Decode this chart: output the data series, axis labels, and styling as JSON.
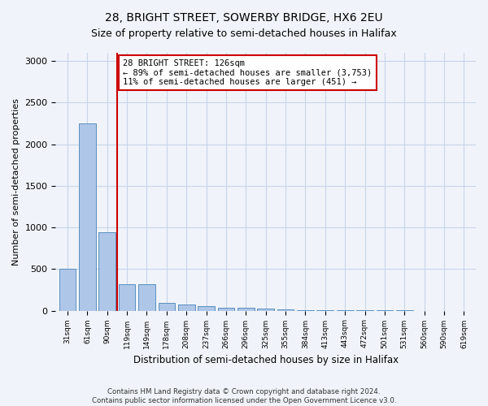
{
  "title1": "28, BRIGHT STREET, SOWERBY BRIDGE, HX6 2EU",
  "title2": "Size of property relative to semi-detached houses in Halifax",
  "xlabel": "Distribution of semi-detached houses by size in Halifax",
  "ylabel": "Number of semi-detached properties",
  "footer": "Contains HM Land Registry data © Crown copyright and database right 2024.\nContains public sector information licensed under the Open Government Licence v3.0.",
  "categories": [
    "31sqm",
    "61sqm",
    "90sqm",
    "119sqm",
    "149sqm",
    "178sqm",
    "208sqm",
    "237sqm",
    "266sqm",
    "296sqm",
    "325sqm",
    "355sqm",
    "384sqm",
    "413sqm",
    "443sqm",
    "472sqm",
    "501sqm",
    "531sqm",
    "560sqm",
    "590sqm",
    "619sqm"
  ],
  "values": [
    500,
    2250,
    940,
    320,
    320,
    90,
    75,
    55,
    35,
    30,
    25,
    20,
    10,
    5,
    3,
    2,
    1,
    1,
    0,
    0,
    0
  ],
  "bar_color": "#aec6e8",
  "bar_edge_color": "#5a8fc0",
  "vline_bin_index": 3,
  "annotation_text": "28 BRIGHT STREET: 126sqm\n← 89% of semi-detached houses are smaller (3,753)\n11% of semi-detached houses are larger (451) →",
  "vline_color": "#cc0000",
  "annotation_box_color": "#ffffff",
  "annotation_box_edge": "#cc0000",
  "ylim": [
    0,
    3100
  ],
  "bg_color": "#f0f4fa",
  "grid_color": "#c8d4e8",
  "title1_fontsize": 10,
  "title2_fontsize": 9
}
